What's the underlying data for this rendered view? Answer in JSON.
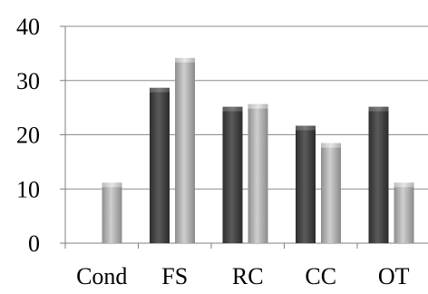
{
  "chart_data": {
    "type": "bar",
    "categories": [
      "Cond",
      "FS",
      "RC",
      "CC",
      "OT"
    ],
    "series": [
      {
        "values": [
          null,
          28.5,
          25,
          21.5,
          25
        ],
        "color": "#4a4a4a"
      },
      {
        "values": [
          11,
          34,
          25.5,
          18.3,
          11
        ],
        "color": "#b4b4b4"
      }
    ],
    "ylim": [
      0,
      40
    ],
    "yticks": [
      0,
      10,
      20,
      30,
      40
    ],
    "grid": true,
    "title": "",
    "xlabel": "",
    "ylabel": "",
    "legend": "none"
  }
}
